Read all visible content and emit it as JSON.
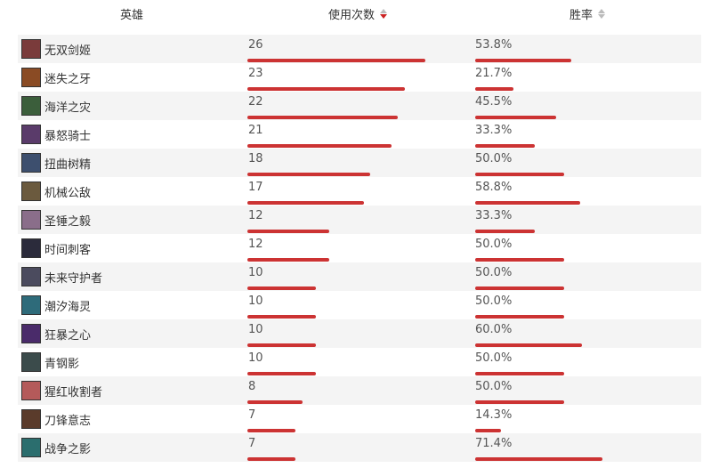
{
  "header": {
    "hero": "英雄",
    "uses": "使用次数",
    "winrate": "胜率"
  },
  "colors": {
    "bar": "#cc3333",
    "row_alt": "#f4f4f4",
    "sort_active": "#cc2222",
    "sort_inactive": "#bbbbbb"
  },
  "rows": [
    {
      "name": "无双剑姬",
      "uses": "26",
      "uses_value": 26,
      "winrate": "53.8%",
      "winrate_value": 53.8,
      "avatar": "#7a3b3b"
    },
    {
      "name": "迷失之牙",
      "uses": "23",
      "uses_value": 23,
      "winrate": "21.7%",
      "winrate_value": 21.7,
      "avatar": "#8a4b24"
    },
    {
      "name": "海洋之灾",
      "uses": "22",
      "uses_value": 22,
      "winrate": "45.5%",
      "winrate_value": 45.5,
      "avatar": "#3b5e3b"
    },
    {
      "name": "暴怒骑士",
      "uses": "21",
      "uses_value": 21,
      "winrate": "33.3%",
      "winrate_value": 33.3,
      "avatar": "#5a3b6a"
    },
    {
      "name": "扭曲树精",
      "uses": "18",
      "uses_value": 18,
      "winrate": "50.0%",
      "winrate_value": 50.0,
      "avatar": "#3d4f6e"
    },
    {
      "name": "机械公敌",
      "uses": "17",
      "uses_value": 17,
      "winrate": "58.8%",
      "winrate_value": 58.8,
      "avatar": "#6b5a3e"
    },
    {
      "name": "圣锤之毅",
      "uses": "12",
      "uses_value": 12,
      "winrate": "33.3%",
      "winrate_value": 33.3,
      "avatar": "#8a6e8a"
    },
    {
      "name": "时间刺客",
      "uses": "12",
      "uses_value": 12,
      "winrate": "50.0%",
      "winrate_value": 50.0,
      "avatar": "#2b2b3b"
    },
    {
      "name": "未来守护者",
      "uses": "10",
      "uses_value": 10,
      "winrate": "50.0%",
      "winrate_value": 50.0,
      "avatar": "#4b4b5e"
    },
    {
      "name": "潮汐海灵",
      "uses": "10",
      "uses_value": 10,
      "winrate": "50.0%",
      "winrate_value": 50.0,
      "avatar": "#2e6b7a"
    },
    {
      "name": "狂暴之心",
      "uses": "10",
      "uses_value": 10,
      "winrate": "60.0%",
      "winrate_value": 60.0,
      "avatar": "#4a2b6a"
    },
    {
      "name": "青钢影",
      "uses": "10",
      "uses_value": 10,
      "winrate": "50.0%",
      "winrate_value": 50.0,
      "avatar": "#3b4b4b"
    },
    {
      "name": "猩红收割者",
      "uses": "8",
      "uses_value": 8,
      "winrate": "50.0%",
      "winrate_value": 50.0,
      "avatar": "#b45a5a"
    },
    {
      "name": "刀锋意志",
      "uses": "7",
      "uses_value": 7,
      "winrate": "14.3%",
      "winrate_value": 14.3,
      "avatar": "#5a3b2b"
    },
    {
      "name": "战争之影",
      "uses": "7",
      "uses_value": 7,
      "winrate": "71.4%",
      "winrate_value": 71.4,
      "avatar": "#2b6e6e"
    }
  ]
}
